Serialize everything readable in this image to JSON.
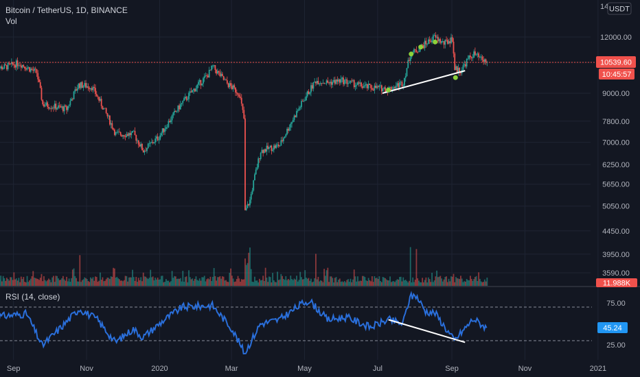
{
  "chart_title": "Bitcoin / TetherUS, 1D, BINANCE",
  "volume_label": "Vol",
  "currency_label": "USDT",
  "last_price": "10539.60",
  "countdown": "10:45:57",
  "volume_value": "11.988K",
  "rsi_title": "RSI (14, close)",
  "rsi_value": "45.24",
  "colors": {
    "background": "#131722",
    "grid": "#1f2433",
    "up": "#26a69a",
    "down": "#ef5350",
    "rsi_line": "#2962ff",
    "text": "#b2b5be",
    "price_tag": "#f0514c",
    "rsi_tag": "#2196f3",
    "marker": "#8bd13a",
    "trendline": "#ffffff"
  },
  "chart_data": [
    {
      "type": "candlestick",
      "title": "Bitcoin / TetherUS, 1D, BINANCE",
      "y_scale": "log",
      "y_ticks": [
        12000,
        10539.6,
        9000,
        7800,
        7000,
        6250,
        5650,
        5050,
        4450,
        3950,
        3590
      ],
      "y_tick_labels": [
        "12000.00",
        "10539.60",
        "9000.00",
        "7800.00",
        "7000.00",
        "6250.00",
        "5650.00",
        "5050.00",
        "4450.00",
        "3950.00",
        "3590.00"
      ],
      "y_top_label": "14000.00",
      "x_tick_labels": [
        "Sep",
        "Nov",
        "2020",
        "Mar",
        "May",
        "Jul",
        "Sep",
        "Nov",
        "2021"
      ],
      "x_start": "2019-08-15",
      "x_end": "2021-01-20",
      "last_close": 10539.6,
      "anchors": [
        [
          "2019-08-15",
          10200
        ],
        [
          "2019-08-25",
          10300
        ],
        [
          "2019-09-05",
          10500
        ],
        [
          "2019-09-20",
          10000
        ],
        [
          "2019-09-25",
          8500
        ],
        [
          "2019-10-15",
          8300
        ],
        [
          "2019-10-25",
          9400
        ],
        [
          "2019-11-05",
          9300
        ],
        [
          "2019-11-25",
          7300
        ],
        [
          "2019-12-10",
          7300
        ],
        [
          "2019-12-18",
          6700
        ],
        [
          "2019-12-31",
          7200
        ],
        [
          "2020-01-20",
          8600
        ],
        [
          "2020-02-10",
          9900
        ],
        [
          "2020-02-14",
          10300
        ],
        [
          "2020-02-25",
          9500
        ],
        [
          "2020-03-07",
          9000
        ],
        [
          "2020-03-11",
          7900
        ],
        [
          "2020-03-12",
          4900
        ],
        [
          "2020-03-16",
          5200
        ],
        [
          "2020-03-25",
          6700
        ],
        [
          "2020-04-10",
          6900
        ],
        [
          "2020-04-30",
          8700
        ],
        [
          "2020-05-10",
          9600
        ],
        [
          "2020-05-20",
          9500
        ],
        [
          "2020-06-01",
          9600
        ],
        [
          "2020-06-20",
          9300
        ],
        [
          "2020-07-10",
          9200
        ],
        [
          "2020-07-22",
          9500
        ],
        [
          "2020-07-28",
          11000
        ],
        [
          "2020-08-02",
          11200
        ],
        [
          "2020-08-17",
          12000
        ],
        [
          "2020-08-25",
          11600
        ],
        [
          "2020-09-01",
          11900
        ],
        [
          "2020-09-03",
          10200
        ],
        [
          "2020-09-08",
          10100
        ],
        [
          "2020-09-14",
          10700
        ],
        [
          "2020-09-19",
          11000
        ],
        [
          "2020-09-25",
          10700
        ],
        [
          "2020-09-30",
          10539.6
        ]
      ],
      "annotations": [
        {
          "kind": "trendline",
          "from": [
            "2020-07-05",
            9000
          ],
          "to": [
            "2020-09-12",
            10100
          ]
        },
        {
          "kind": "dot",
          "at": [
            "2020-07-10",
            9150
          ]
        },
        {
          "kind": "dot",
          "at": [
            "2020-07-29",
            11000
          ]
        },
        {
          "kind": "dot",
          "at": [
            "2020-08-06",
            11400
          ]
        },
        {
          "kind": "dot",
          "at": [
            "2020-08-18",
            11700
          ]
        },
        {
          "kind": "dot",
          "at": [
            "2020-09-04",
            9750
          ]
        }
      ]
    },
    {
      "type": "line",
      "title": "RSI (14, close)",
      "y_ticks": [
        25,
        75
      ],
      "y_tick_labels": [
        "25.00",
        "75.00"
      ],
      "levels": [
        70,
        30
      ],
      "current": 45.24,
      "anchors": [
        [
          "2019-08-15",
          58
        ],
        [
          "2019-08-28",
          60
        ],
        [
          "2019-09-12",
          62
        ],
        [
          "2019-09-25",
          24
        ],
        [
          "2019-10-10",
          45
        ],
        [
          "2019-10-26",
          68
        ],
        [
          "2019-11-10",
          55
        ],
        [
          "2019-11-25",
          28
        ],
        [
          "2019-12-10",
          44
        ],
        [
          "2019-12-18",
          34
        ],
        [
          "2020-01-05",
          55
        ],
        [
          "2020-01-20",
          70
        ],
        [
          "2020-02-14",
          72
        ],
        [
          "2020-03-01",
          45
        ],
        [
          "2020-03-12",
          15
        ],
        [
          "2020-03-25",
          50
        ],
        [
          "2020-04-10",
          55
        ],
        [
          "2020-04-30",
          75
        ],
        [
          "2020-05-05",
          78
        ],
        [
          "2020-05-20",
          55
        ],
        [
          "2020-06-05",
          58
        ],
        [
          "2020-06-25",
          46
        ],
        [
          "2020-07-10",
          55
        ],
        [
          "2020-07-22",
          50
        ],
        [
          "2020-07-28",
          82
        ],
        [
          "2020-08-02",
          84
        ],
        [
          "2020-08-10",
          65
        ],
        [
          "2020-08-18",
          63
        ],
        [
          "2020-09-03",
          30
        ],
        [
          "2020-09-06",
          35
        ],
        [
          "2020-09-14",
          48
        ],
        [
          "2020-09-19",
          56
        ],
        [
          "2020-09-30",
          45.24
        ]
      ],
      "annotations": [
        {
          "kind": "trendline",
          "from": [
            "2020-07-10",
            55
          ],
          "to": [
            "2020-09-12",
            28
          ]
        }
      ]
    }
  ]
}
